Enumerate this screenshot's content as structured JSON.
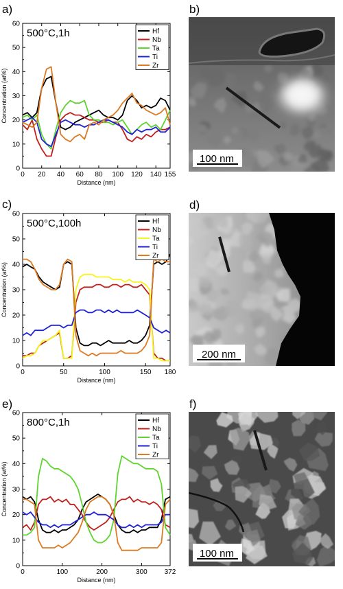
{
  "chart_data": [
    {
      "type": "line",
      "panel_label": "a)",
      "annotation": "500°C,1h",
      "xlabel": "Distance (nm)",
      "ylabel": "Concentration (at%)",
      "xlim": [
        0,
        155
      ],
      "ylim": [
        0,
        60
      ],
      "xticks": [
        0,
        20,
        40,
        60,
        80,
        100,
        120,
        140,
        155
      ],
      "yticks": [
        0,
        10,
        20,
        30,
        40,
        50,
        60
      ],
      "legend_position": "top-right",
      "x": [
        0,
        5,
        10,
        15,
        20,
        25,
        30,
        35,
        40,
        45,
        50,
        55,
        60,
        65,
        70,
        75,
        80,
        85,
        90,
        95,
        100,
        105,
        110,
        115,
        120,
        125,
        130,
        135,
        140,
        145,
        150,
        155
      ],
      "series": [
        {
          "name": "Hf",
          "color": "#000000",
          "values": [
            22,
            23,
            21,
            23,
            33,
            37,
            38,
            27,
            17,
            16,
            17,
            19,
            20,
            21,
            22,
            23,
            24,
            22,
            21,
            21,
            20,
            22,
            28,
            30,
            28,
            25,
            26,
            25,
            26,
            29,
            28,
            24
          ]
        },
        {
          "name": "Nb",
          "color": "#c0201e",
          "values": [
            18,
            16,
            20,
            12,
            8,
            5,
            5,
            13,
            20,
            22,
            23,
            22,
            22,
            21,
            20,
            20,
            19,
            19,
            20,
            19,
            19,
            16,
            12,
            11,
            13,
            12,
            14,
            13,
            15,
            16,
            16,
            17
          ]
        },
        {
          "name": "Ta",
          "color": "#5ed42f",
          "values": [
            21,
            22,
            20,
            22,
            14,
            10,
            8,
            16,
            23,
            26,
            28,
            27,
            27,
            28,
            22,
            20,
            20,
            19,
            19,
            18,
            19,
            20,
            17,
            14,
            16,
            18,
            19,
            17,
            18,
            16,
            20,
            24
          ]
        },
        {
          "name": "Ti",
          "color": "#1f22d6",
          "values": [
            19,
            20,
            21,
            19,
            12,
            10,
            9,
            14,
            19,
            20,
            19,
            18,
            18,
            17,
            18,
            18,
            19,
            20,
            20,
            19,
            18,
            17,
            15,
            14,
            16,
            15,
            16,
            16,
            17,
            15,
            15,
            17
          ]
        },
        {
          "name": "Zr",
          "color": "#dd7a22",
          "values": [
            19,
            18,
            17,
            19,
            33,
            41,
            42,
            27,
            14,
            12,
            11,
            13,
            14,
            12,
            18,
            19,
            18,
            20,
            21,
            22,
            24,
            27,
            29,
            31,
            27,
            26,
            24,
            23,
            22,
            23,
            25,
            18
          ]
        }
      ]
    },
    {
      "type": "line",
      "panel_label": "c)",
      "annotation": "500°C,100h",
      "xlabel": "Distance (nm)",
      "ylabel": "Concentration (at%)",
      "xlim": [
        0,
        180
      ],
      "ylim": [
        0,
        60
      ],
      "xticks": [
        0,
        50,
        100,
        150,
        180
      ],
      "yticks": [
        0,
        10,
        20,
        30,
        40,
        50,
        60
      ],
      "legend_position": "top-right",
      "x": [
        0,
        5,
        10,
        15,
        20,
        25,
        30,
        35,
        40,
        45,
        50,
        55,
        60,
        65,
        70,
        75,
        80,
        85,
        90,
        95,
        100,
        105,
        110,
        115,
        120,
        125,
        130,
        135,
        140,
        145,
        150,
        155,
        160,
        165,
        170,
        175,
        180
      ],
      "series": [
        {
          "name": "Hf",
          "color": "#000000",
          "values": [
            39,
            40,
            39,
            38,
            35,
            33,
            32,
            31,
            30,
            31,
            40,
            41,
            40,
            15,
            9,
            8,
            8,
            9,
            9,
            8,
            9,
            10,
            9,
            9,
            9,
            9,
            10,
            9,
            9,
            10,
            12,
            16,
            40,
            41,
            40,
            41,
            44
          ]
        },
        {
          "name": "Nb",
          "color": "#c0201e",
          "values": [
            4,
            4,
            5,
            5,
            8,
            9,
            10,
            11,
            12,
            13,
            3,
            3,
            4,
            25,
            30,
            31,
            31,
            31,
            32,
            32,
            31,
            31,
            32,
            32,
            31,
            32,
            32,
            31,
            31,
            32,
            30,
            28,
            5,
            3,
            3,
            2,
            2
          ]
        },
        {
          "name": "Ta",
          "color": "#f5f51e",
          "values": [
            3,
            4,
            4,
            5,
            8,
            10,
            10,
            11,
            12,
            14,
            3,
            3,
            3,
            30,
            35,
            36,
            36,
            36,
            35,
            35,
            35,
            35,
            34,
            34,
            34,
            33,
            34,
            33,
            33,
            33,
            32,
            30,
            3,
            3,
            2,
            2,
            2
          ]
        },
        {
          "name": "Ti",
          "color": "#1f22d6",
          "values": [
            12,
            13,
            12,
            14,
            14,
            14,
            15,
            16,
            16,
            16,
            15,
            16,
            16,
            21,
            22,
            22,
            21,
            21,
            22,
            22,
            21,
            22,
            21,
            22,
            21,
            21,
            21,
            21,
            22,
            21,
            20,
            19,
            15,
            14,
            13,
            14,
            13
          ]
        },
        {
          "name": "Zr",
          "color": "#dd7a22",
          "values": [
            42,
            42,
            41,
            38,
            34,
            32,
            31,
            30,
            30,
            32,
            40,
            42,
            41,
            12,
            6,
            5,
            4,
            5,
            4,
            5,
            5,
            5,
            5,
            5,
            6,
            5,
            5,
            5,
            5,
            6,
            8,
            12,
            42,
            41,
            42,
            41,
            41
          ]
        }
      ]
    },
    {
      "type": "line",
      "panel_label": "e)",
      "annotation": "800°C,1h",
      "xlabel": "Distance (nm)",
      "ylabel": "Concentration (at%)",
      "xlim": [
        0,
        372
      ],
      "ylim": [
        0,
        60
      ],
      "xticks": [
        0,
        100,
        200,
        300,
        372
      ],
      "yticks": [
        0,
        10,
        20,
        30,
        40,
        50,
        60
      ],
      "legend_position": "top-right",
      "x": [
        0,
        10,
        20,
        30,
        40,
        50,
        60,
        70,
        80,
        90,
        100,
        110,
        120,
        130,
        140,
        150,
        160,
        170,
        180,
        190,
        200,
        210,
        220,
        230,
        240,
        250,
        260,
        270,
        280,
        290,
        300,
        310,
        320,
        330,
        340,
        350,
        360,
        372
      ],
      "series": [
        {
          "name": "Hf",
          "color": "#000000",
          "values": [
            27,
            26,
            27,
            25,
            18,
            14,
            13,
            13,
            14,
            13,
            14,
            14,
            15,
            16,
            18,
            22,
            25,
            26,
            27,
            28,
            27,
            26,
            24,
            20,
            16,
            14,
            13,
            13,
            14,
            13,
            14,
            14,
            15,
            15,
            15,
            18,
            26,
            27
          ]
        },
        {
          "name": "Nb",
          "color": "#c0201e",
          "values": [
            15,
            16,
            14,
            17,
            24,
            26,
            26,
            27,
            25,
            26,
            25,
            26,
            24,
            24,
            22,
            20,
            17,
            15,
            14,
            15,
            16,
            17,
            19,
            22,
            25,
            26,
            26,
            27,
            25,
            26,
            25,
            25,
            24,
            25,
            24,
            22,
            16,
            15
          ]
        },
        {
          "name": "Ta",
          "color": "#5ed42f",
          "values": [
            12,
            12,
            13,
            15,
            35,
            42,
            41,
            39,
            38,
            38,
            37,
            36,
            35,
            33,
            30,
            24,
            17,
            13,
            10,
            9,
            9,
            10,
            12,
            18,
            36,
            43,
            42,
            41,
            40,
            40,
            39,
            38,
            38,
            38,
            37,
            32,
            15,
            12
          ]
        },
        {
          "name": "Ti",
          "color": "#1f22d6",
          "values": [
            21,
            20,
            21,
            19,
            17,
            16,
            16,
            15,
            16,
            15,
            16,
            16,
            16,
            17,
            18,
            19,
            20,
            20,
            21,
            20,
            20,
            20,
            19,
            18,
            16,
            15,
            15,
            16,
            15,
            16,
            15,
            16,
            16,
            16,
            16,
            17,
            20,
            20
          ]
        },
        {
          "name": "Zr",
          "color": "#dd7a22",
          "values": [
            26,
            26,
            25,
            24,
            10,
            7,
            7,
            7,
            7,
            8,
            7,
            8,
            9,
            11,
            13,
            17,
            22,
            25,
            26,
            27,
            27,
            26,
            24,
            20,
            9,
            6,
            6,
            6,
            6,
            6,
            7,
            7,
            7,
            7,
            7,
            9,
            24,
            26
          ]
        }
      ]
    }
  ],
  "micrographs": [
    {
      "panel_label": "b)",
      "scale_bar": "100 nm",
      "style": "bright"
    },
    {
      "panel_label": "d)",
      "scale_bar": "200 nm",
      "style": "dark-edge"
    },
    {
      "panel_label": "f)",
      "scale_bar": "100 nm",
      "style": "grains"
    }
  ]
}
